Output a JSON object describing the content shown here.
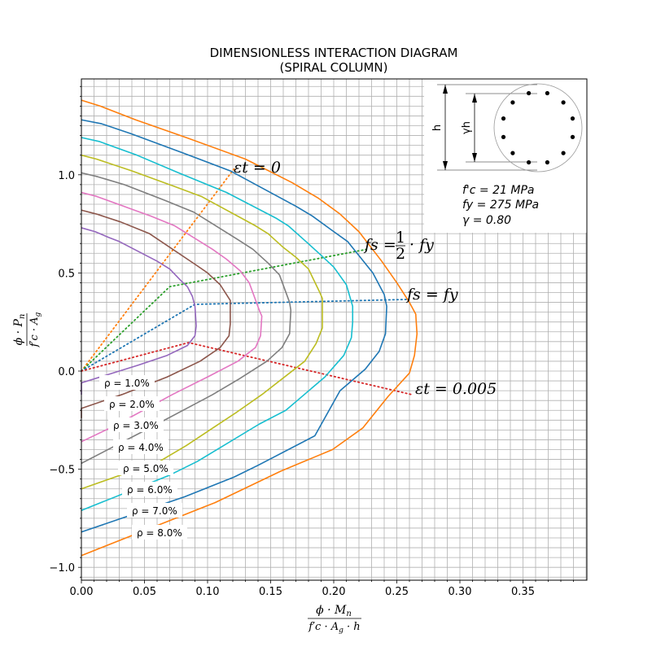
{
  "chart_data": {
    "type": "line",
    "title": "DIMENSIONLESS INTERACTION DIAGRAM",
    "subtitle": "(SPIRAL COLUMN)",
    "xlabel": "ϕ · Mn / f'c · Ag · h",
    "ylabel": "ϕ · Pn / f'c · Ag",
    "xlim": [
      0.0,
      0.4
    ],
    "ylim": [
      -1.06,
      1.49
    ],
    "x_ticks": [
      "0.00",
      "0.05",
      "0.10",
      "0.15",
      "0.20",
      "0.25",
      "0.30",
      "0.35"
    ],
    "y_ticks": [
      "−1.0",
      "−0.5",
      "0.0",
      "0.5",
      "1.0"
    ],
    "grid": true,
    "series": [
      {
        "name": "ρ = 1.0%",
        "color": "#9467bd",
        "x": [
          0,
          0.011,
          0.022,
          0.03,
          0.06,
          0.07,
          0.079,
          0.084,
          0.088,
          0.09,
          0.091,
          0.09,
          0.084,
          0.068,
          0.045,
          0,
          0
        ],
        "y": [
          0.73,
          0.71,
          0.68,
          0.66,
          0.56,
          0.52,
          0.46,
          0.43,
          0.38,
          0.33,
          0.23,
          0.18,
          0.13,
          0.08,
          0.03,
          -0.06,
          -0.12
        ]
      },
      {
        "name": "ρ = 2.0%",
        "color": "#8c564b",
        "x": [
          0,
          0.012,
          0.031,
          0.054,
          0.091,
          0.1,
          0.11,
          0.118,
          0.118,
          0.117,
          0.11,
          0.094,
          0.068,
          0.032,
          0,
          0
        ],
        "y": [
          0.82,
          0.8,
          0.76,
          0.7,
          0.54,
          0.5,
          0.44,
          0.36,
          0.24,
          0.18,
          0.12,
          0.05,
          -0.03,
          -0.12,
          -0.19,
          -0.24
        ]
      },
      {
        "name": "ρ = 3.0%",
        "color": "#e377c2",
        "x": [
          0,
          0.012,
          0.042,
          0.055,
          0.074,
          0.104,
          0.115,
          0.126,
          0.133,
          0.141,
          0.143,
          0.142,
          0.138,
          0.124,
          0.1,
          0.072,
          0.026,
          0
        ],
        "y": [
          0.91,
          0.89,
          0.82,
          0.79,
          0.74,
          0.62,
          0.57,
          0.51,
          0.45,
          0.31,
          0.28,
          0.18,
          0.12,
          0.05,
          -0.03,
          -0.12,
          -0.28,
          -0.36
        ]
      },
      {
        "name": "ρ = 4.0%",
        "color": "#7f7f7f",
        "x": [
          0,
          0.013,
          0.034,
          0.066,
          0.089,
          0.124,
          0.136,
          0.148,
          0.157,
          0.165,
          0.166,
          0.165,
          0.159,
          0.147,
          0.125,
          0.104,
          0.06,
          0
        ],
        "y": [
          1.01,
          0.99,
          0.95,
          0.87,
          0.81,
          0.67,
          0.62,
          0.55,
          0.49,
          0.35,
          0.31,
          0.19,
          0.12,
          0.05,
          -0.04,
          -0.12,
          -0.27,
          -0.47
        ]
      },
      {
        "name": "ρ = 5.0%",
        "color": "#bcbd22",
        "x": [
          0,
          0.012,
          0.04,
          0.074,
          0.095,
          0.138,
          0.148,
          0.16,
          0.17,
          0.18,
          0.189,
          0.191,
          0.191,
          0.186,
          0.177,
          0.143,
          0.123,
          0.083,
          0.062,
          0
        ],
        "y": [
          1.1,
          1.08,
          1.02,
          0.94,
          0.89,
          0.74,
          0.7,
          0.63,
          0.58,
          0.52,
          0.4,
          0.37,
          0.22,
          0.14,
          0.05,
          -0.12,
          -0.21,
          -0.38,
          -0.46,
          -0.6
        ]
      },
      {
        "name": "ρ = 6.0%",
        "color": "#17becf",
        "x": [
          0,
          0.014,
          0.044,
          0.077,
          0.115,
          0.154,
          0.164,
          0.178,
          0.19,
          0.2,
          0.21,
          0.215,
          0.215,
          0.214,
          0.208,
          0.193,
          0.162,
          0.141,
          0.092,
          0.07,
          0
        ],
        "y": [
          1.19,
          1.17,
          1.1,
          1.01,
          0.91,
          0.78,
          0.74,
          0.66,
          0.59,
          0.53,
          0.44,
          0.33,
          0.25,
          0.17,
          0.08,
          -0.03,
          -0.2,
          -0.27,
          -0.46,
          -0.53,
          -0.71
        ]
      },
      {
        "name": "ρ = 7.0%",
        "color": "#1f77b4",
        "x": [
          0,
          0.016,
          0.039,
          0.081,
          0.118,
          0.17,
          0.183,
          0.198,
          0.211,
          0.231,
          0.24,
          0.242,
          0.241,
          0.236,
          0.225,
          0.205,
          0.185,
          0.14,
          0.121,
          0.082,
          0
        ],
        "y": [
          1.28,
          1.26,
          1.21,
          1.11,
          1.02,
          0.84,
          0.79,
          0.72,
          0.66,
          0.5,
          0.39,
          0.33,
          0.19,
          0.1,
          0.01,
          -0.1,
          -0.33,
          -0.48,
          -0.54,
          -0.64,
          -0.82
        ]
      },
      {
        "name": "ρ = 8.0%",
        "color": "#ff7f0e",
        "x": [
          0,
          0.015,
          0.043,
          0.083,
          0.13,
          0.167,
          0.188,
          0.205,
          0.22,
          0.238,
          0.25,
          0.26,
          0.265,
          0.266,
          0.264,
          0.26,
          0.243,
          0.223,
          0.199,
          0.158,
          0.106,
          0
        ],
        "y": [
          1.38,
          1.35,
          1.28,
          1.19,
          1.08,
          0.96,
          0.88,
          0.8,
          0.71,
          0.56,
          0.45,
          0.35,
          0.29,
          0.19,
          0.08,
          -0.01,
          -0.13,
          -0.29,
          -0.4,
          -0.51,
          -0.67,
          -0.94
        ]
      }
    ],
    "reference_lines": [
      {
        "label": "εt = 0",
        "color": "#ff7f0e",
        "x": [
          0,
          0.121
        ],
        "y": [
          0,
          1.03
        ]
      },
      {
        "label": "fs = 1/2 · fy",
        "color": "#2ca02c",
        "x": [
          0,
          0.07,
          0.226
        ],
        "y": [
          0,
          0.43,
          0.62
        ]
      },
      {
        "label": "fs = fy",
        "color": "#1f77b4",
        "x": [
          0,
          0.09,
          0.259
        ],
        "y": [
          0,
          0.34,
          0.365
        ]
      },
      {
        "label": "εt = 0.005",
        "color": "#d62728",
        "x": [
          0,
          0.085,
          0.262
        ],
        "y": [
          0,
          0.145,
          -0.12
        ]
      }
    ],
    "legend_placement": "lower-left",
    "annotations": {
      "et0": "εt = 0",
      "fs_half_prefix": "fs =",
      "fs_half_num": "1",
      "fs_half_den": "2",
      "fs_half_suffix": "· fy",
      "fs_fy": "fs = fy",
      "et005": "εt = 0.005"
    },
    "section": {
      "fc": "f'c = 21 MPa",
      "fy": "fy = 275 MPa",
      "gamma": "γ = 0.80",
      "h_label": "h",
      "gh_label": "γh"
    }
  }
}
